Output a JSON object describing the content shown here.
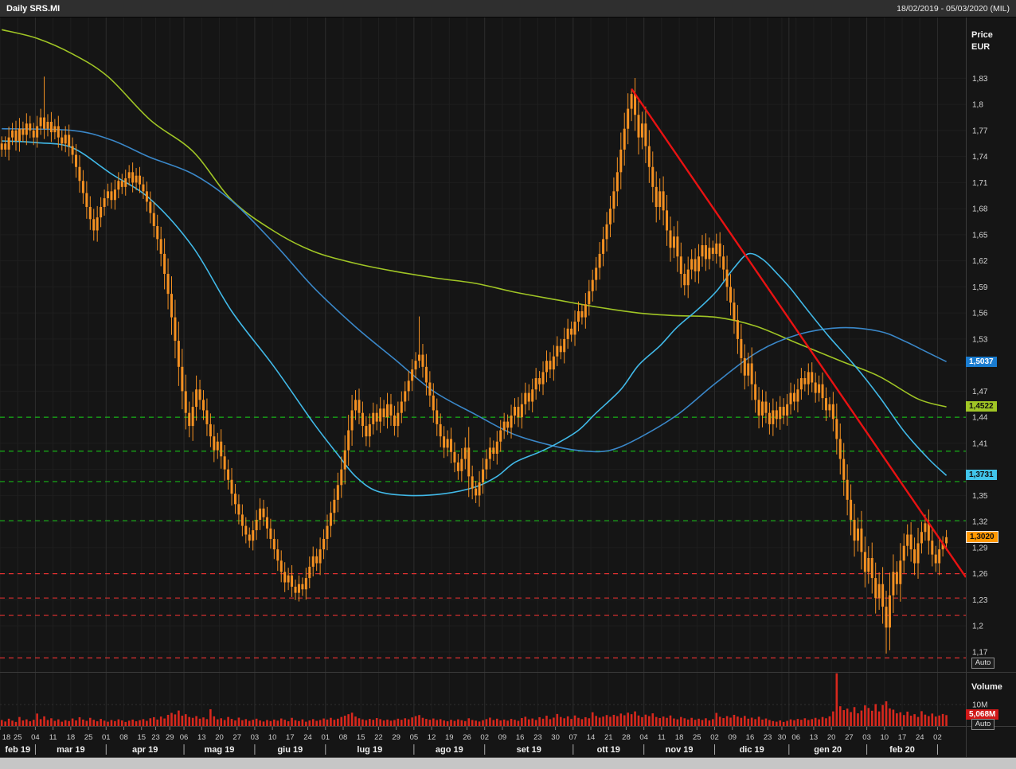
{
  "header": {
    "title": "Daily SRS.MI",
    "date_range": "18/02/2019 - 05/03/2020 (MIL)"
  },
  "price_axis": {
    "title_line1": "Price",
    "title_line2": "EUR",
    "min": 1.147,
    "max": 1.9,
    "tick_start": 1.17,
    "tick_step": 0.03,
    "tick_count": 23,
    "auto_label": "Auto"
  },
  "volume_axis": {
    "title": "Volume",
    "tick_label": "10M",
    "tick_value": 10,
    "badge": {
      "label": "5,068M",
      "value": 5.068,
      "bg": "#d01818",
      "text": "#ffffff"
    },
    "auto_label": "Auto"
  },
  "price_badges": [
    {
      "label": "1,5037",
      "value": 1.5037,
      "bg": "#1a7cd0",
      "text": "#ffffff",
      "highlight": false
    },
    {
      "label": "1,4522",
      "value": 1.4522,
      "bg": "#a0c525",
      "text": "#101010",
      "highlight": false
    },
    {
      "label": "1,3731",
      "value": 1.3731,
      "bg": "#41c4ea",
      "text": "#101010",
      "highlight": false
    },
    {
      "label": "1,3020",
      "value": 1.302,
      "bg": "#ff9800",
      "text": "#101010",
      "highlight": true
    }
  ],
  "x_axis": {
    "weeks": [
      {
        "l": "18",
        "i": 0
      },
      {
        "l": "25",
        "i": 5
      },
      {
        "l": "04",
        "i": 10
      },
      {
        "l": "11",
        "i": 15
      },
      {
        "l": "18",
        "i": 20
      },
      {
        "l": "25",
        "i": 25
      },
      {
        "l": "01",
        "i": 30
      },
      {
        "l": "08",
        "i": 35
      },
      {
        "l": "15",
        "i": 40
      },
      {
        "l": "23",
        "i": 44
      },
      {
        "l": "29",
        "i": 48
      },
      {
        "l": "06",
        "i": 52
      },
      {
        "l": "13",
        "i": 57
      },
      {
        "l": "20",
        "i": 62
      },
      {
        "l": "27",
        "i": 67
      },
      {
        "l": "03",
        "i": 72
      },
      {
        "l": "10",
        "i": 77
      },
      {
        "l": "17",
        "i": 82
      },
      {
        "l": "24",
        "i": 87
      },
      {
        "l": "01",
        "i": 92
      },
      {
        "l": "08",
        "i": 97
      },
      {
        "l": "15",
        "i": 102
      },
      {
        "l": "22",
        "i": 107
      },
      {
        "l": "29",
        "i": 112
      },
      {
        "l": "05",
        "i": 117
      },
      {
        "l": "12",
        "i": 122
      },
      {
        "l": "19",
        "i": 127
      },
      {
        "l": "26",
        "i": 132
      },
      {
        "l": "02",
        "i": 137
      },
      {
        "l": "09",
        "i": 142
      },
      {
        "l": "16",
        "i": 147
      },
      {
        "l": "23",
        "i": 152
      },
      {
        "l": "30",
        "i": 157
      },
      {
        "l": "07",
        "i": 162
      },
      {
        "l": "14",
        "i": 167
      },
      {
        "l": "21",
        "i": 172
      },
      {
        "l": "28",
        "i": 177
      },
      {
        "l": "04",
        "i": 182
      },
      {
        "l": "11",
        "i": 187
      },
      {
        "l": "18",
        "i": 192
      },
      {
        "l": "25",
        "i": 197
      },
      {
        "l": "02",
        "i": 202
      },
      {
        "l": "09",
        "i": 207
      },
      {
        "l": "16",
        "i": 212
      },
      {
        "l": "23",
        "i": 217
      },
      {
        "l": "30",
        "i": 221
      },
      {
        "l": "06",
        "i": 225
      },
      {
        "l": "13",
        "i": 230
      },
      {
        "l": "20",
        "i": 235
      },
      {
        "l": "27",
        "i": 240
      },
      {
        "l": "03",
        "i": 245
      },
      {
        "l": "10",
        "i": 250
      },
      {
        "l": "17",
        "i": 255
      },
      {
        "l": "24",
        "i": 260
      },
      {
        "l": "02",
        "i": 265
      }
    ],
    "months": [
      {
        "label": "feb 19",
        "start": 0,
        "end": 10
      },
      {
        "label": "mar 19",
        "start": 10,
        "end": 30
      },
      {
        "label": "apr 19",
        "start": 30,
        "end": 52
      },
      {
        "label": "mag 19",
        "start": 52,
        "end": 72
      },
      {
        "label": "giu 19",
        "start": 72,
        "end": 92
      },
      {
        "label": "lug 19",
        "start": 92,
        "end": 117
      },
      {
        "label": "ago 19",
        "start": 117,
        "end": 137
      },
      {
        "label": "set 19",
        "start": 137,
        "end": 162
      },
      {
        "label": "ott 19",
        "start": 162,
        "end": 182
      },
      {
        "label": "nov 19",
        "start": 182,
        "end": 202
      },
      {
        "label": "dic 19",
        "start": 202,
        "end": 223
      },
      {
        "label": "gen 20",
        "start": 223,
        "end": 245
      },
      {
        "label": "feb 20",
        "start": 245,
        "end": 265
      },
      {
        "label": "",
        "start": 265,
        "end": 273
      }
    ]
  },
  "chart_data": {
    "type": "candlestick",
    "symbol": "SRS.MI",
    "interval": "Daily",
    "currency": "EUR",
    "ylim": [
      1.147,
      1.9
    ],
    "total_slots": 273,
    "first_open": 1.748,
    "candle_color": "#f59122",
    "volume_color": "#d7281d",
    "last_price_label": "1,3020",
    "closes": [
      1.755,
      1.748,
      1.762,
      1.77,
      1.758,
      1.772,
      1.765,
      1.778,
      1.77,
      1.762,
      1.775,
      1.785,
      1.772,
      1.78,
      1.768,
      1.775,
      1.762,
      1.755,
      1.765,
      1.752,
      1.742,
      1.728,
      1.712,
      1.698,
      1.682,
      1.668,
      1.655,
      1.67,
      1.682,
      1.692,
      1.7,
      1.69,
      1.702,
      1.712,
      1.705,
      1.715,
      1.722,
      1.71,
      1.718,
      1.708,
      1.7,
      1.688,
      1.675,
      1.66,
      1.645,
      1.628,
      1.605,
      1.582,
      1.555,
      1.528,
      1.498,
      1.47,
      1.445,
      1.43,
      1.452,
      1.472,
      1.46,
      1.448,
      1.432,
      1.418,
      1.402,
      1.412,
      1.395,
      1.38,
      1.368,
      1.352,
      1.34,
      1.328,
      1.315,
      1.305,
      1.298,
      1.31,
      1.322,
      1.335,
      1.325,
      1.312,
      1.3,
      1.288,
      1.275,
      1.262,
      1.25,
      1.258,
      1.245,
      1.238,
      1.248,
      1.242,
      1.255,
      1.268,
      1.28,
      1.272,
      1.288,
      1.3,
      1.315,
      1.33,
      1.345,
      1.362,
      1.38,
      1.402,
      1.425,
      1.448,
      1.46,
      1.445,
      1.43,
      1.418,
      1.432,
      1.445,
      1.435,
      1.45,
      1.44,
      1.455,
      1.442,
      1.43,
      1.445,
      1.458,
      1.47,
      1.482,
      1.495,
      1.505,
      1.512,
      1.498,
      1.48,
      1.465,
      1.448,
      1.432,
      1.418,
      1.405,
      1.415,
      1.4,
      1.388,
      1.378,
      1.392,
      1.405,
      1.372,
      1.358,
      1.35,
      1.365,
      1.38,
      1.392,
      1.405,
      1.398,
      1.412,
      1.425,
      1.435,
      1.428,
      1.442,
      1.452,
      1.44,
      1.455,
      1.468,
      1.458,
      1.472,
      1.485,
      1.478,
      1.492,
      1.505,
      1.495,
      1.51,
      1.522,
      1.515,
      1.53,
      1.542,
      1.535,
      1.55,
      1.562,
      1.555,
      1.57,
      1.585,
      1.598,
      1.612,
      1.628,
      1.645,
      1.662,
      1.68,
      1.7,
      1.722,
      1.748,
      1.772,
      1.795,
      1.812,
      1.788,
      1.762,
      1.778,
      1.752,
      1.728,
      1.705,
      1.682,
      1.7,
      1.678,
      1.655,
      1.635,
      1.648,
      1.625,
      1.605,
      1.592,
      1.61,
      1.622,
      1.608,
      1.625,
      1.638,
      1.622,
      1.635,
      1.628,
      1.64,
      1.625,
      1.61,
      1.59,
      1.572,
      1.552,
      1.53,
      1.508,
      1.488,
      1.502,
      1.478,
      1.46,
      1.442,
      1.458,
      1.445,
      1.432,
      1.448,
      1.438,
      1.452,
      1.442,
      1.455,
      1.468,
      1.458,
      1.472,
      1.485,
      1.478,
      1.492,
      1.48,
      1.468,
      1.478,
      1.462,
      1.448,
      1.455,
      1.438,
      1.415,
      1.392,
      1.368,
      1.345,
      1.322,
      1.298,
      1.312,
      1.285,
      1.262,
      1.278,
      1.255,
      1.232,
      1.248,
      1.222,
      1.198,
      1.235,
      1.262,
      1.248,
      1.275,
      1.292,
      1.305,
      1.288,
      1.272,
      1.295,
      1.308,
      1.318,
      1.298,
      1.282,
      1.272,
      1.288,
      1.295,
      1.302
    ],
    "volumes_millions": [
      2.8,
      2.1,
      3.4,
      2.5,
      1.9,
      4.2,
      2.6,
      3.1,
      2.2,
      2.9,
      5.8,
      3.2,
      4.5,
      2.8,
      3.6,
      2.4,
      3.1,
      2.0,
      2.7,
      2.3,
      3.5,
      2.6,
      4.1,
      3.0,
      2.4,
      3.8,
      2.9,
      2.2,
      3.3,
      2.5,
      2.0,
      2.8,
      2.3,
      3.1,
      2.6,
      1.9,
      2.5,
      3.0,
      2.2,
      2.7,
      3.2,
      2.4,
      3.6,
      4.1,
      3.0,
      4.4,
      3.5,
      5.2,
      6.1,
      5.4,
      7.2,
      4.8,
      5.5,
      4.2,
      3.8,
      4.6,
      3.4,
      4.0,
      3.2,
      7.8,
      4.5,
      3.1,
      3.6,
      2.8,
      4.2,
      3.3,
      2.6,
      3.9,
      2.7,
      3.2,
      2.4,
      2.9,
      3.4,
      2.6,
      2.1,
      2.8,
      2.3,
      3.0,
      2.5,
      3.5,
      2.9,
      2.2,
      3.8,
      2.7,
      2.3,
      3.1,
      2.0,
      2.6,
      3.2,
      2.4,
      2.8,
      3.5,
      3.0,
      3.8,
      2.9,
      3.4,
      4.2,
      4.8,
      5.5,
      6.2,
      4.4,
      3.6,
      3.1,
      2.7,
      3.3,
      2.9,
      3.7,
      3.2,
      2.6,
      3.0,
      2.5,
      2.8,
      3.4,
      2.9,
      3.6,
      3.1,
      4.0,
      4.6,
      5.1,
      3.8,
      3.3,
      2.9,
      3.5,
      2.8,
      3.2,
      2.6,
      2.2,
      2.9,
      2.4,
      3.1,
      2.7,
      2.3,
      3.6,
      2.8,
      2.5,
      2.1,
      2.7,
      3.2,
      3.9,
      2.8,
      3.4,
      2.6,
      3.0,
      2.5,
      3.3,
      2.9,
      2.4,
      3.7,
      4.3,
      3.1,
      3.5,
      2.8,
      4.1,
      3.4,
      4.8,
      3.2,
      3.9,
      5.6,
      4.2,
      3.6,
      4.5,
      3.3,
      4.9,
      3.8,
      3.2,
      4.1,
      3.6,
      6.4,
      4.7,
      3.9,
      4.4,
      5.1,
      4.3,
      5.2,
      4.6,
      5.8,
      5.0,
      6.2,
      5.5,
      6.8,
      4.9,
      4.1,
      5.3,
      4.6,
      5.9,
      4.2,
      3.7,
      4.4,
      3.8,
      4.9,
      3.5,
      3.1,
      4.2,
      3.6,
      3.0,
      3.8,
      2.9,
      3.4,
      2.8,
      3.6,
      2.6,
      3.2,
      6.1,
      4.3,
      3.7,
      4.6,
      3.9,
      5.2,
      4.4,
      3.8,
      4.7,
      3.4,
      3.9,
      3.2,
      4.3,
      3.0,
      3.5,
      2.8,
      2.3,
      2.0,
      2.6,
      1.9,
      2.4,
      3.1,
      2.7,
      3.3,
      2.9,
      3.6,
      2.8,
      3.2,
      3.8,
      3.1,
      4.2,
      3.6,
      4.5,
      6.8,
      24.5,
      9.2,
      7.4,
      8.1,
      6.5,
      8.8,
      5.9,
      7.2,
      9.6,
      8.4,
      7.1,
      10.2,
      6.8,
      9.8,
      11.5,
      8.2,
      7.6,
      5.9,
      6.4,
      5.1,
      6.7,
      4.8,
      5.5,
      4.2,
      6.9,
      5.3,
      4.6,
      5.8,
      4.4,
      4.9,
      5.6,
      5.068
    ],
    "wick_base": 0.004,
    "wick_factor": 0.6,
    "wick_overrides": {
      "12": {
        "high": 1.832
      },
      "118": {
        "high": 1.556
      },
      "178": {
        "high": 1.818
      },
      "228": {
        "high": 1.502
      },
      "250": {
        "low": 1.168
      }
    },
    "moving_averages": [
      {
        "name": "ma-long",
        "color": "#a0c525",
        "end_value": 1.4522,
        "points": [
          [
            0,
            1.886
          ],
          [
            10,
            1.876
          ],
          [
            20,
            1.858
          ],
          [
            30,
            1.832
          ],
          [
            42,
            1.782
          ],
          [
            54,
            1.746
          ],
          [
            65,
            1.69
          ],
          [
            77,
            1.654
          ],
          [
            88,
            1.631
          ],
          [
            100,
            1.617
          ],
          [
            111,
            1.608
          ],
          [
            123,
            1.6
          ],
          [
            134,
            1.594
          ],
          [
            145,
            1.584
          ],
          [
            157,
            1.575
          ],
          [
            168,
            1.567
          ],
          [
            180,
            1.56
          ],
          [
            190,
            1.557
          ],
          [
            202,
            1.555
          ],
          [
            213,
            1.545
          ],
          [
            225,
            1.525
          ],
          [
            237,
            1.505
          ],
          [
            248,
            1.487
          ],
          [
            259,
            1.461
          ],
          [
            267,
            1.452
          ]
        ]
      },
      {
        "name": "ma-mid",
        "color": "#3a87c8",
        "end_value": 1.5037,
        "points": [
          [
            0,
            1.772
          ],
          [
            20,
            1.77
          ],
          [
            31,
            1.759
          ],
          [
            42,
            1.739
          ],
          [
            54,
            1.72
          ],
          [
            65,
            1.689
          ],
          [
            77,
            1.64
          ],
          [
            88,
            1.59
          ],
          [
            100,
            1.544
          ],
          [
            111,
            1.507
          ],
          [
            122,
            1.47
          ],
          [
            134,
            1.443
          ],
          [
            145,
            1.42
          ],
          [
            157,
            1.406
          ],
          [
            165,
            1.401
          ],
          [
            172,
            1.402
          ],
          [
            180,
            1.416
          ],
          [
            191,
            1.443
          ],
          [
            202,
            1.48
          ],
          [
            214,
            1.516
          ],
          [
            225,
            1.535
          ],
          [
            237,
            1.543
          ],
          [
            248,
            1.539
          ],
          [
            255,
            1.528
          ],
          [
            261,
            1.516
          ],
          [
            267,
            1.504
          ]
        ]
      },
      {
        "name": "ma-short",
        "color": "#41b9e8",
        "end_value": 1.3731,
        "points": [
          [
            0,
            1.758
          ],
          [
            10,
            1.756
          ],
          [
            20,
            1.75
          ],
          [
            31,
            1.72
          ],
          [
            42,
            1.691
          ],
          [
            54,
            1.636
          ],
          [
            65,
            1.562
          ],
          [
            77,
            1.498
          ],
          [
            88,
            1.434
          ],
          [
            95,
            1.397
          ],
          [
            100,
            1.372
          ],
          [
            106,
            1.355
          ],
          [
            115,
            1.35
          ],
          [
            125,
            1.352
          ],
          [
            134,
            1.36
          ],
          [
            140,
            1.372
          ],
          [
            145,
            1.388
          ],
          [
            152,
            1.4
          ],
          [
            157,
            1.41
          ],
          [
            163,
            1.425
          ],
          [
            168,
            1.445
          ],
          [
            175,
            1.472
          ],
          [
            180,
            1.5
          ],
          [
            186,
            1.522
          ],
          [
            191,
            1.544
          ],
          [
            197,
            1.565
          ],
          [
            202,
            1.585
          ],
          [
            207,
            1.612
          ],
          [
            211,
            1.628
          ],
          [
            215,
            1.622
          ],
          [
            219,
            1.606
          ],
          [
            223,
            1.588
          ],
          [
            228,
            1.562
          ],
          [
            234,
            1.532
          ],
          [
            241,
            1.5
          ],
          [
            248,
            1.464
          ],
          [
            255,
            1.424
          ],
          [
            262,
            1.392
          ],
          [
            267,
            1.373
          ]
        ]
      }
    ],
    "trend_line": {
      "color": "#e81212",
      "from": [
        178,
        1.818
      ],
      "to": [
        273,
        1.256
      ]
    },
    "levels": {
      "support_green": {
        "color": "#17b317",
        "values": [
          1.44,
          1.401,
          1.366,
          1.321
        ]
      },
      "support_red": {
        "color": "#e03030",
        "values": [
          1.26,
          1.232,
          1.212,
          1.163
        ]
      }
    }
  }
}
